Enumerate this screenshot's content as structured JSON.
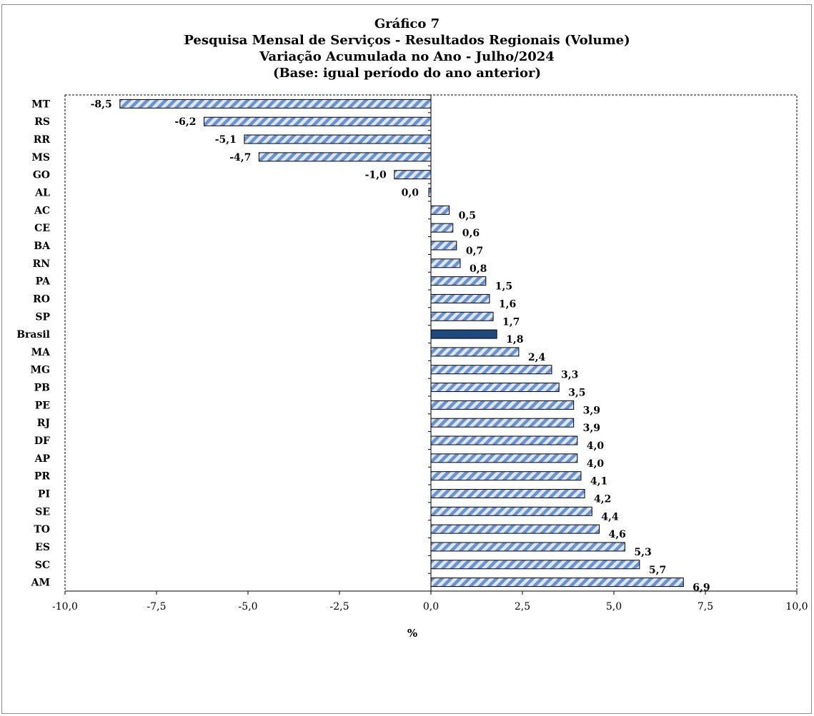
{
  "chart_data": {
    "type": "bar",
    "orientation": "horizontal",
    "title": "Gráfico 7",
    "subtitle_lines": [
      "Pesquisa  Mensal de Serviços - Resultados Regionais (Volume)",
      "Variação Acumulada no Ano - Julho/2024",
      "(Base: igual período do ano anterior)"
    ],
    "xlabel": "%",
    "ylabel": "",
    "xlim": [
      -10,
      10
    ],
    "x_ticks": [
      "-10,0",
      "-7,5",
      "-5,0",
      "-2,5",
      "0,0",
      "2,5",
      "5,0",
      "7,5",
      "10,0"
    ],
    "x_tick_values": [
      -10,
      -7.5,
      -5,
      -2.5,
      0,
      2.5,
      5,
      7.5,
      10
    ],
    "grid": false,
    "legend": "none",
    "categories": [
      "MT",
      "RS",
      "RR",
      "MS",
      "GO",
      "AL",
      "AC",
      "CE",
      "BA",
      "RN",
      "PA",
      "RO",
      "SP",
      "Brasil",
      "MA",
      "MG",
      "PB",
      "PE",
      "RJ",
      "DF",
      "AP",
      "PR",
      "PI",
      "SE",
      "TO",
      "ES",
      "SC",
      "AM"
    ],
    "values": [
      -8.5,
      -6.2,
      -5.1,
      -4.7,
      -1.0,
      0.0,
      0.5,
      0.6,
      0.7,
      0.8,
      1.5,
      1.6,
      1.7,
      1.8,
      2.4,
      3.3,
      3.5,
      3.9,
      3.9,
      4.0,
      4.0,
      4.1,
      4.2,
      4.4,
      4.6,
      5.3,
      5.7,
      6.9
    ],
    "value_labels": [
      "-8,5",
      "-6,2",
      "-5,1",
      "-4,7",
      "-1,0",
      "0,0",
      "0,5",
      "0,6",
      "0,7",
      "0,8",
      "1,5",
      "1,6",
      "1,7",
      "1,8",
      "2,4",
      "3,3",
      "3,5",
      "3,9",
      "3,9",
      "4,0",
      "4,0",
      "4,1",
      "4,2",
      "4,4",
      "4,6",
      "5,3",
      "5,7",
      "6,9"
    ],
    "highlight_category": "Brasil",
    "colors": {
      "bar_stripe": "#6b93cf",
      "bar_base": "#dce6f4",
      "bar_border": "#000000",
      "highlight": "#1f497d"
    }
  }
}
